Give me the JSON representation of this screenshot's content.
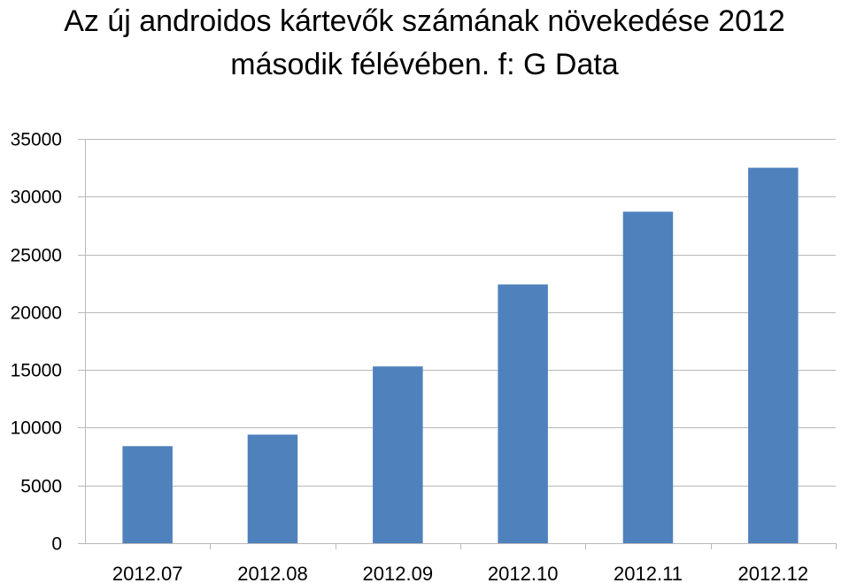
{
  "chart_data": {
    "type": "bar",
    "title_line1": "Az új androidos kártevők számának növekedése 2012",
    "title_line2": "második félévében. f: G Data",
    "categories": [
      "2012.07",
      "2012.08",
      "2012.09",
      "2012.10",
      "2012.11",
      "2012.12"
    ],
    "values": [
      8400,
      9400,
      15300,
      22400,
      28700,
      32500
    ],
    "ylim": [
      0,
      35000
    ],
    "yticks": [
      0,
      5000,
      10000,
      15000,
      20000,
      25000,
      30000,
      35000
    ],
    "grid": true,
    "legend": "none",
    "bar_color": "#4F81BD",
    "grid_color": "#B9B9B9"
  }
}
